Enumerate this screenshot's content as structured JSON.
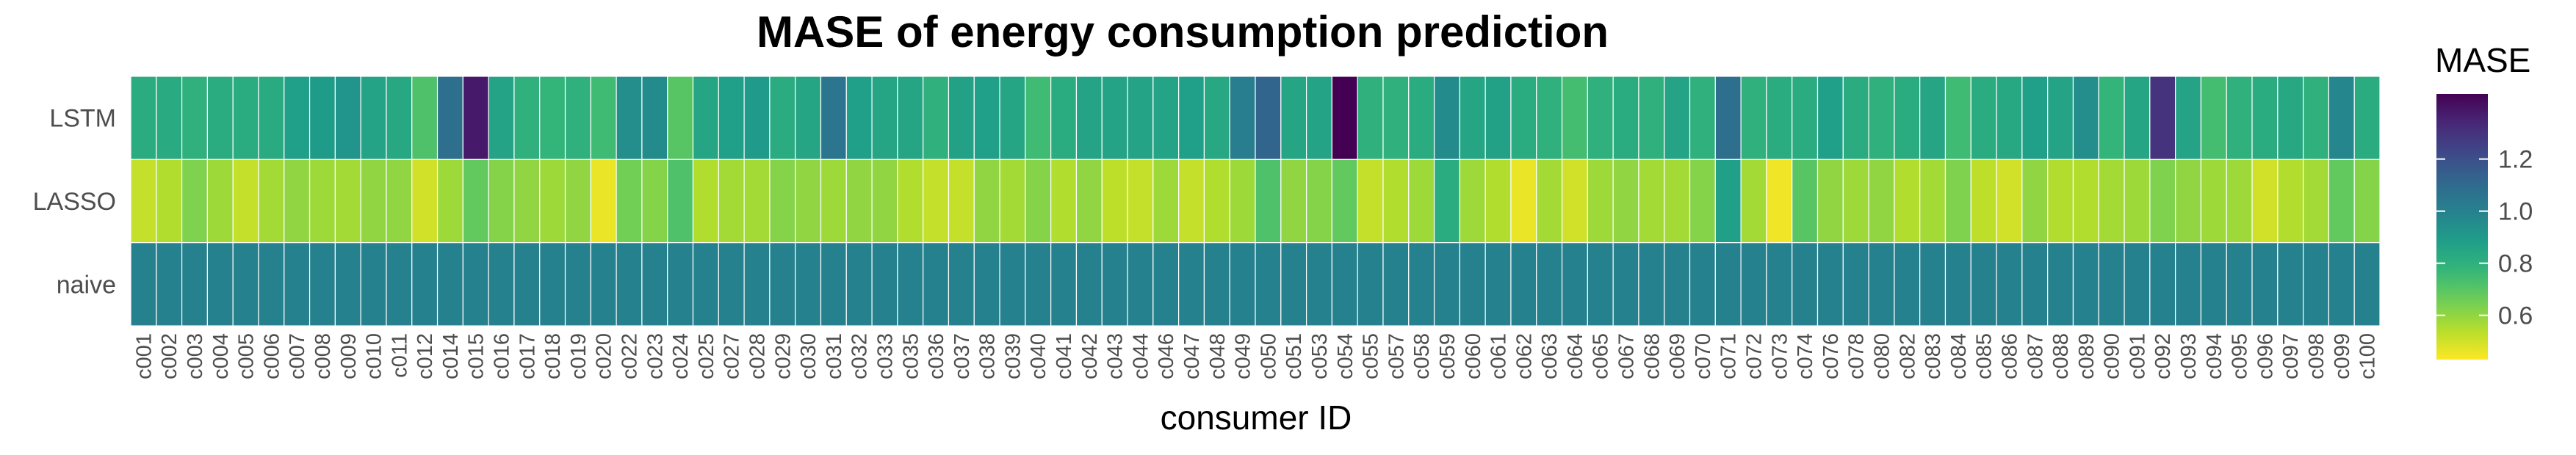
{
  "chart_data": {
    "type": "heatmap",
    "title": "MASE of energy consumption prediction",
    "xlabel": "consumer ID",
    "ylabel": "",
    "rows": [
      "LSTM",
      "LASSO",
      "naive"
    ],
    "columns": [
      "c001",
      "c002",
      "c003",
      "c004",
      "c005",
      "c006",
      "c007",
      "c008",
      "c009",
      "c010",
      "c011",
      "c012",
      "c014",
      "c015",
      "c016",
      "c017",
      "c018",
      "c019",
      "c020",
      "c022",
      "c023",
      "c024",
      "c025",
      "c027",
      "c028",
      "c029",
      "c030",
      "c031",
      "c032",
      "c033",
      "c035",
      "c036",
      "c037",
      "c038",
      "c039",
      "c040",
      "c041",
      "c042",
      "c043",
      "c044",
      "c046",
      "c047",
      "c048",
      "c049",
      "c050",
      "c051",
      "c053",
      "c054",
      "c055",
      "c057",
      "c058",
      "c059",
      "c060",
      "c061",
      "c062",
      "c063",
      "c064",
      "c065",
      "c067",
      "c068",
      "c069",
      "c070",
      "c071",
      "c072",
      "c073",
      "c074",
      "c076",
      "c078",
      "c080",
      "c082",
      "c083",
      "c084",
      "c085",
      "c086",
      "c087",
      "c088",
      "c089",
      "c090",
      "c091",
      "c092",
      "c093",
      "c094",
      "c095",
      "c096",
      "c097",
      "c098",
      "c099",
      "c100"
    ],
    "values": {
      "LSTM": [
        0.82,
        0.83,
        0.8,
        0.82,
        0.82,
        0.83,
        0.88,
        0.89,
        0.92,
        0.86,
        0.84,
        0.72,
        1.08,
        1.38,
        0.86,
        0.8,
        0.78,
        0.8,
        0.75,
        0.95,
        0.96,
        0.7,
        0.85,
        0.88,
        0.9,
        0.82,
        0.85,
        1.05,
        0.88,
        0.85,
        0.85,
        0.8,
        0.87,
        0.88,
        0.85,
        0.75,
        0.82,
        0.86,
        0.86,
        0.86,
        0.86,
        0.88,
        0.84,
        1.02,
        1.12,
        0.85,
        0.86,
        1.45,
        0.8,
        0.8,
        0.82,
        0.96,
        0.85,
        0.87,
        0.82,
        0.8,
        0.74,
        0.8,
        0.82,
        0.8,
        0.86,
        0.8,
        1.08,
        0.8,
        0.82,
        0.82,
        0.88,
        0.82,
        0.8,
        0.82,
        0.85,
        0.75,
        0.82,
        0.84,
        0.88,
        0.86,
        0.95,
        0.78,
        0.85,
        1.3,
        0.86,
        0.74,
        0.8,
        0.82,
        0.84,
        0.8,
        0.98,
        0.82
      ],
      "LASSO": [
        0.52,
        0.55,
        0.63,
        0.58,
        0.52,
        0.57,
        0.6,
        0.58,
        0.57,
        0.6,
        0.6,
        0.5,
        0.58,
        0.68,
        0.62,
        0.6,
        0.58,
        0.6,
        0.46,
        0.65,
        0.62,
        0.72,
        0.55,
        0.57,
        0.57,
        0.62,
        0.6,
        0.58,
        0.6,
        0.6,
        0.55,
        0.52,
        0.52,
        0.6,
        0.57,
        0.62,
        0.55,
        0.6,
        0.53,
        0.52,
        0.58,
        0.52,
        0.55,
        0.58,
        0.72,
        0.6,
        0.62,
        0.68,
        0.52,
        0.55,
        0.58,
        0.82,
        0.58,
        0.55,
        0.46,
        0.57,
        0.5,
        0.58,
        0.6,
        0.57,
        0.57,
        0.62,
        0.88,
        0.57,
        0.45,
        0.7,
        0.6,
        0.58,
        0.6,
        0.55,
        0.57,
        0.63,
        0.53,
        0.5,
        0.6,
        0.55,
        0.55,
        0.57,
        0.58,
        0.63,
        0.6,
        0.58,
        0.58,
        0.5,
        0.55,
        0.57,
        0.68,
        0.62
      ],
      "naive": [
        1.0,
        1.0,
        1.0,
        1.0,
        1.0,
        1.0,
        1.0,
        1.0,
        1.0,
        1.0,
        1.0,
        1.0,
        1.0,
        1.0,
        1.0,
        1.0,
        1.0,
        1.0,
        1.0,
        1.0,
        1.0,
        1.0,
        1.0,
        1.0,
        1.0,
        1.0,
        1.0,
        1.0,
        1.0,
        1.0,
        1.0,
        1.0,
        1.0,
        1.0,
        1.0,
        1.0,
        1.0,
        1.0,
        1.0,
        1.0,
        1.0,
        1.0,
        1.0,
        1.0,
        1.0,
        1.0,
        1.0,
        1.0,
        1.0,
        1.0,
        1.0,
        1.0,
        1.0,
        1.0,
        1.0,
        1.0,
        1.0,
        1.0,
        1.0,
        1.0,
        1.0,
        1.0,
        1.0,
        1.0,
        1.0,
        1.0,
        1.0,
        1.0,
        1.0,
        1.0,
        1.0,
        1.0,
        1.0,
        1.0,
        1.0,
        1.0,
        1.0,
        1.0,
        1.0,
        1.0,
        1.0,
        1.0,
        1.0,
        1.0,
        1.0,
        1.0,
        1.0,
        1.0
      ]
    },
    "colorscale": "viridis",
    "colorbar": {
      "title": "MASE",
      "range": [
        0.43,
        1.45
      ],
      "ticks": [
        0.6,
        0.8,
        1.0,
        1.2
      ],
      "tick_labels": [
        "0.6",
        "0.8",
        "1.0",
        "1.2"
      ],
      "reversed": true
    },
    "legend_position": "right",
    "grid": false
  }
}
